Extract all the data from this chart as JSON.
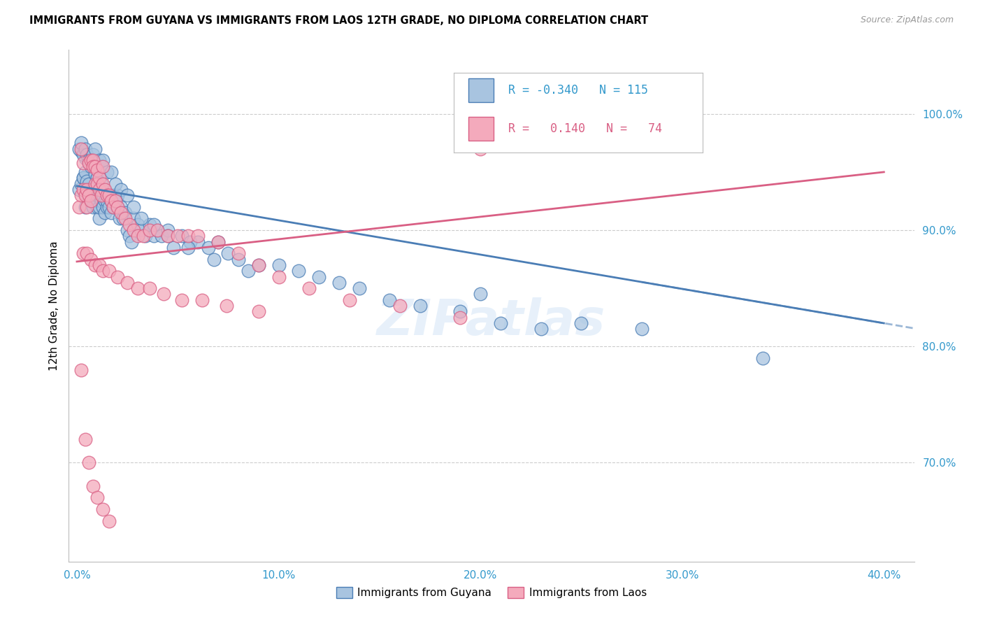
{
  "title": "IMMIGRANTS FROM GUYANA VS IMMIGRANTS FROM LAOS 12TH GRADE, NO DIPLOMA CORRELATION CHART",
  "source": "Source: ZipAtlas.com",
  "ylabel": "12th Grade, No Diploma",
  "xlabel_ticks": [
    "0.0%",
    "10.0%",
    "20.0%",
    "30.0%",
    "40.0%"
  ],
  "xlabel_vals": [
    0.0,
    0.1,
    0.2,
    0.3,
    0.4
  ],
  "ylabel_ticks": [
    "70.0%",
    "80.0%",
    "90.0%",
    "100.0%"
  ],
  "ylabel_vals": [
    0.7,
    0.8,
    0.9,
    1.0
  ],
  "ymin": 0.615,
  "ymax": 1.055,
  "xmin": -0.004,
  "xmax": 0.415,
  "legend_blue_r": "-0.340",
  "legend_blue_n": "115",
  "legend_pink_r": " 0.140",
  "legend_pink_n": " 74",
  "legend_label_blue": "Immigrants from Guyana",
  "legend_label_pink": "Immigrants from Laos",
  "blue_scatter_color": "#A8C4E0",
  "blue_edge_color": "#4A7DB5",
  "pink_scatter_color": "#F4AABC",
  "pink_edge_color": "#D95F84",
  "blue_line_color": "#4A7DB5",
  "pink_line_color": "#D95F84",
  "watermark": "ZIPatlas",
  "blue_trendline": [
    0.0,
    0.938,
    0.4,
    0.82
  ],
  "pink_trendline": [
    0.0,
    0.873,
    0.4,
    0.95
  ],
  "blue_scatter_x": [
    0.001,
    0.002,
    0.002,
    0.003,
    0.003,
    0.003,
    0.004,
    0.004,
    0.004,
    0.005,
    0.005,
    0.005,
    0.006,
    0.006,
    0.006,
    0.006,
    0.007,
    0.007,
    0.007,
    0.007,
    0.008,
    0.008,
    0.008,
    0.009,
    0.009,
    0.009,
    0.01,
    0.01,
    0.01,
    0.01,
    0.011,
    0.011,
    0.011,
    0.012,
    0.012,
    0.012,
    0.013,
    0.013,
    0.014,
    0.014,
    0.015,
    0.015,
    0.016,
    0.016,
    0.017,
    0.017,
    0.018,
    0.018,
    0.019,
    0.02,
    0.02,
    0.021,
    0.022,
    0.023,
    0.024,
    0.025,
    0.026,
    0.027,
    0.028,
    0.03,
    0.032,
    0.034,
    0.036,
    0.038,
    0.04,
    0.042,
    0.045,
    0.048,
    0.052,
    0.056,
    0.06,
    0.065,
    0.07,
    0.075,
    0.08,
    0.09,
    0.1,
    0.11,
    0.12,
    0.13,
    0.14,
    0.155,
    0.17,
    0.19,
    0.21,
    0.23,
    0.25,
    0.28,
    0.2,
    0.34,
    0.001,
    0.002,
    0.003,
    0.004,
    0.005,
    0.006,
    0.007,
    0.008,
    0.009,
    0.01,
    0.011,
    0.012,
    0.013,
    0.015,
    0.017,
    0.019,
    0.022,
    0.025,
    0.028,
    0.032,
    0.038,
    0.045,
    0.055,
    0.068,
    0.085
  ],
  "blue_scatter_y": [
    0.935,
    0.94,
    0.968,
    0.945,
    0.945,
    0.968,
    0.92,
    0.95,
    0.962,
    0.93,
    0.935,
    0.942,
    0.93,
    0.935,
    0.94,
    0.958,
    0.925,
    0.93,
    0.935,
    0.955,
    0.92,
    0.925,
    0.935,
    0.925,
    0.93,
    0.948,
    0.92,
    0.925,
    0.93,
    0.945,
    0.91,
    0.92,
    0.93,
    0.925,
    0.935,
    0.94,
    0.92,
    0.93,
    0.915,
    0.925,
    0.92,
    0.925,
    0.93,
    0.92,
    0.915,
    0.925,
    0.92,
    0.93,
    0.925,
    0.92,
    0.93,
    0.91,
    0.92,
    0.91,
    0.915,
    0.9,
    0.895,
    0.89,
    0.91,
    0.905,
    0.9,
    0.895,
    0.905,
    0.895,
    0.9,
    0.895,
    0.9,
    0.885,
    0.895,
    0.89,
    0.89,
    0.885,
    0.89,
    0.88,
    0.875,
    0.87,
    0.87,
    0.865,
    0.86,
    0.855,
    0.85,
    0.84,
    0.835,
    0.83,
    0.82,
    0.815,
    0.82,
    0.815,
    0.845,
    0.79,
    0.97,
    0.975,
    0.965,
    0.97,
    0.965,
    0.96,
    0.96,
    0.965,
    0.97,
    0.955,
    0.96,
    0.955,
    0.96,
    0.95,
    0.95,
    0.94,
    0.935,
    0.93,
    0.92,
    0.91,
    0.905,
    0.895,
    0.885,
    0.875,
    0.865
  ],
  "pink_scatter_x": [
    0.001,
    0.002,
    0.002,
    0.003,
    0.003,
    0.004,
    0.005,
    0.005,
    0.006,
    0.006,
    0.007,
    0.007,
    0.008,
    0.008,
    0.009,
    0.009,
    0.01,
    0.01,
    0.011,
    0.011,
    0.012,
    0.013,
    0.013,
    0.014,
    0.015,
    0.016,
    0.017,
    0.018,
    0.019,
    0.02,
    0.022,
    0.024,
    0.026,
    0.028,
    0.03,
    0.033,
    0.036,
    0.04,
    0.045,
    0.05,
    0.055,
    0.06,
    0.07,
    0.08,
    0.09,
    0.1,
    0.115,
    0.135,
    0.16,
    0.19,
    0.003,
    0.005,
    0.007,
    0.009,
    0.011,
    0.013,
    0.016,
    0.02,
    0.025,
    0.03,
    0.036,
    0.043,
    0.052,
    0.062,
    0.074,
    0.09,
    0.002,
    0.004,
    0.006,
    0.008,
    0.01,
    0.013,
    0.016,
    0.2
  ],
  "pink_scatter_y": [
    0.92,
    0.93,
    0.97,
    0.935,
    0.958,
    0.93,
    0.92,
    0.935,
    0.93,
    0.958,
    0.925,
    0.96,
    0.96,
    0.955,
    0.955,
    0.94,
    0.94,
    0.952,
    0.945,
    0.935,
    0.93,
    0.94,
    0.955,
    0.935,
    0.93,
    0.93,
    0.925,
    0.92,
    0.925,
    0.92,
    0.915,
    0.91,
    0.905,
    0.9,
    0.895,
    0.895,
    0.9,
    0.9,
    0.895,
    0.895,
    0.895,
    0.895,
    0.89,
    0.88,
    0.87,
    0.86,
    0.85,
    0.84,
    0.835,
    0.825,
    0.88,
    0.88,
    0.875,
    0.87,
    0.87,
    0.865,
    0.865,
    0.86,
    0.855,
    0.85,
    0.85,
    0.845,
    0.84,
    0.84,
    0.835,
    0.83,
    0.78,
    0.72,
    0.7,
    0.68,
    0.67,
    0.66,
    0.65,
    0.97
  ]
}
